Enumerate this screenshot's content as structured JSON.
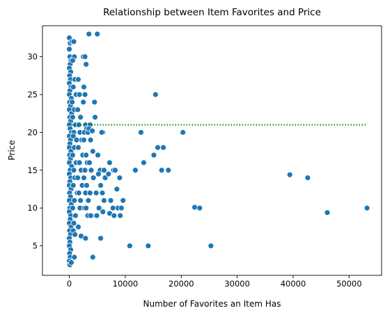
{
  "chart_data": {
    "type": "scatter",
    "title": "Relationship between Item Favorites and Price",
    "xlabel": "Number of Favorites an Item Has",
    "ylabel": "Price",
    "xlim": [
      -4800,
      55800
    ],
    "ylim": [
      1.1,
      34.1
    ],
    "xticks": [
      0,
      10000,
      20000,
      30000,
      40000,
      50000
    ],
    "yticks": [
      5,
      10,
      15,
      20,
      25,
      30
    ],
    "grid": false,
    "legend": "none",
    "colors": {
      "points": "#1f77b4",
      "reference_line": "#008000"
    },
    "reference_line": {
      "y": 21,
      "x_range": [
        0,
        53200
      ],
      "style": "dotted"
    },
    "points": [
      [
        0,
        32.5
      ],
      [
        150,
        31.8
      ],
      [
        0,
        31
      ],
      [
        100,
        30
      ],
      [
        300,
        29.5
      ],
      [
        150,
        29
      ],
      [
        0,
        28.5
      ],
      [
        250,
        28
      ],
      [
        50,
        27.5
      ],
      [
        200,
        27
      ],
      [
        0,
        26.5
      ],
      [
        300,
        26
      ],
      [
        100,
        25.5
      ],
      [
        0,
        25
      ],
      [
        350,
        24.5
      ],
      [
        50,
        24
      ],
      [
        200,
        23.5
      ],
      [
        0,
        23
      ],
      [
        400,
        22.5
      ],
      [
        100,
        22
      ],
      [
        250,
        21.5
      ],
      [
        0,
        21
      ],
      [
        150,
        20.5
      ],
      [
        350,
        20
      ],
      [
        0,
        19.5
      ],
      [
        200,
        19
      ],
      [
        100,
        18.5
      ],
      [
        0,
        18
      ],
      [
        300,
        17.5
      ],
      [
        50,
        17
      ],
      [
        200,
        16.5
      ],
      [
        0,
        16
      ],
      [
        400,
        15.5
      ],
      [
        150,
        15
      ],
      [
        0,
        14.5
      ],
      [
        250,
        14
      ],
      [
        100,
        13.5
      ],
      [
        0,
        13
      ],
      [
        300,
        12.5
      ],
      [
        50,
        12
      ],
      [
        200,
        11.5
      ],
      [
        0,
        11
      ],
      [
        350,
        10.5
      ],
      [
        100,
        10
      ],
      [
        0,
        9.5
      ],
      [
        250,
        9
      ],
      [
        150,
        8.5
      ],
      [
        0,
        8
      ],
      [
        300,
        7.5
      ],
      [
        50,
        7
      ],
      [
        200,
        6.5
      ],
      [
        0,
        6
      ],
      [
        100,
        5.5
      ],
      [
        0,
        5
      ],
      [
        250,
        4.5
      ],
      [
        50,
        4
      ],
      [
        150,
        3.5
      ],
      [
        0,
        3
      ],
      [
        100,
        2.5
      ],
      [
        350,
        2.8
      ],
      [
        500,
        32
      ],
      [
        800,
        32
      ],
      [
        900,
        30
      ],
      [
        600,
        29.5
      ],
      [
        1000,
        27
      ],
      [
        700,
        26
      ],
      [
        1200,
        25
      ],
      [
        500,
        24
      ],
      [
        900,
        23
      ],
      [
        600,
        22
      ],
      [
        1100,
        21
      ],
      [
        800,
        20
      ],
      [
        700,
        19.5
      ],
      [
        1300,
        19
      ],
      [
        900,
        18
      ],
      [
        600,
        17
      ],
      [
        1200,
        16
      ],
      [
        800,
        15
      ],
      [
        1000,
        14
      ],
      [
        700,
        13
      ],
      [
        1400,
        12
      ],
      [
        900,
        11
      ],
      [
        600,
        10
      ],
      [
        1100,
        9
      ],
      [
        800,
        8
      ],
      [
        700,
        7
      ],
      [
        1000,
        6.5
      ],
      [
        900,
        3.5
      ],
      [
        1600,
        27
      ],
      [
        1800,
        25
      ],
      [
        1500,
        23
      ],
      [
        2000,
        22
      ],
      [
        1700,
        21
      ],
      [
        1900,
        20
      ],
      [
        2200,
        19
      ],
      [
        1600,
        18
      ],
      [
        2400,
        17
      ],
      [
        1800,
        16
      ],
      [
        2100,
        15
      ],
      [
        1500,
        14
      ],
      [
        2300,
        13
      ],
      [
        1700,
        12
      ],
      [
        2000,
        11
      ],
      [
        1900,
        10
      ],
      [
        1600,
        7.5
      ],
      [
        2100,
        6.3
      ],
      [
        2500,
        30
      ],
      [
        2800,
        30
      ],
      [
        3000,
        29
      ],
      [
        2600,
        26
      ],
      [
        2800,
        25
      ],
      [
        2500,
        24
      ],
      [
        2900,
        21
      ],
      [
        3100,
        20.5
      ],
      [
        2700,
        20
      ],
      [
        3300,
        20
      ],
      [
        2600,
        19
      ],
      [
        3000,
        17
      ],
      [
        3200,
        16
      ],
      [
        2800,
        15
      ],
      [
        2600,
        14
      ],
      [
        3100,
        13
      ],
      [
        2900,
        12
      ],
      [
        3400,
        11
      ],
      [
        2700,
        10
      ],
      [
        3000,
        10
      ],
      [
        3300,
        9
      ],
      [
        2900,
        6
      ],
      [
        3500,
        33
      ],
      [
        3700,
        21
      ],
      [
        3500,
        20.5
      ],
      [
        4100,
        20.2
      ],
      [
        3800,
        19
      ],
      [
        4200,
        17.5
      ],
      [
        3600,
        16
      ],
      [
        3900,
        15
      ],
      [
        4300,
        14
      ],
      [
        3700,
        12
      ],
      [
        4000,
        9
      ],
      [
        3800,
        9
      ],
      [
        4200,
        3.5
      ],
      [
        5000,
        33
      ],
      [
        4500,
        24
      ],
      [
        4600,
        22
      ],
      [
        5100,
        17
      ],
      [
        5500,
        15
      ],
      [
        5200,
        14.5
      ],
      [
        5600,
        13
      ],
      [
        4800,
        12
      ],
      [
        5300,
        10
      ],
      [
        4900,
        9
      ],
      [
        5600,
        6
      ],
      [
        6000,
        20
      ],
      [
        5800,
        20
      ],
      [
        6200,
        15
      ],
      [
        6400,
        14
      ],
      [
        5900,
        12
      ],
      [
        6200,
        11
      ],
      [
        6000,
        9.5
      ],
      [
        7200,
        16
      ],
      [
        7000,
        14.5
      ],
      [
        7400,
        11
      ],
      [
        7200,
        9.3
      ],
      [
        7900,
        15
      ],
      [
        8200,
        15
      ],
      [
        8500,
        12.5
      ],
      [
        7800,
        10
      ],
      [
        8000,
        9
      ],
      [
        9000,
        14
      ],
      [
        8700,
        10
      ],
      [
        9300,
        10
      ],
      [
        9100,
        9
      ],
      [
        9600,
        11
      ],
      [
        10800,
        5
      ],
      [
        11800,
        15
      ],
      [
        12800,
        20
      ],
      [
        13300,
        16
      ],
      [
        14100,
        5
      ],
      [
        15100,
        17
      ],
      [
        15400,
        25
      ],
      [
        15800,
        18
      ],
      [
        16500,
        15
      ],
      [
        16800,
        18
      ],
      [
        17700,
        15
      ],
      [
        20300,
        20
      ],
      [
        22400,
        10.1
      ],
      [
        23300,
        10
      ],
      [
        25300,
        5
      ],
      [
        39400,
        14.4
      ],
      [
        42600,
        14
      ],
      [
        46100,
        9.4
      ],
      [
        53200,
        10
      ]
    ]
  }
}
